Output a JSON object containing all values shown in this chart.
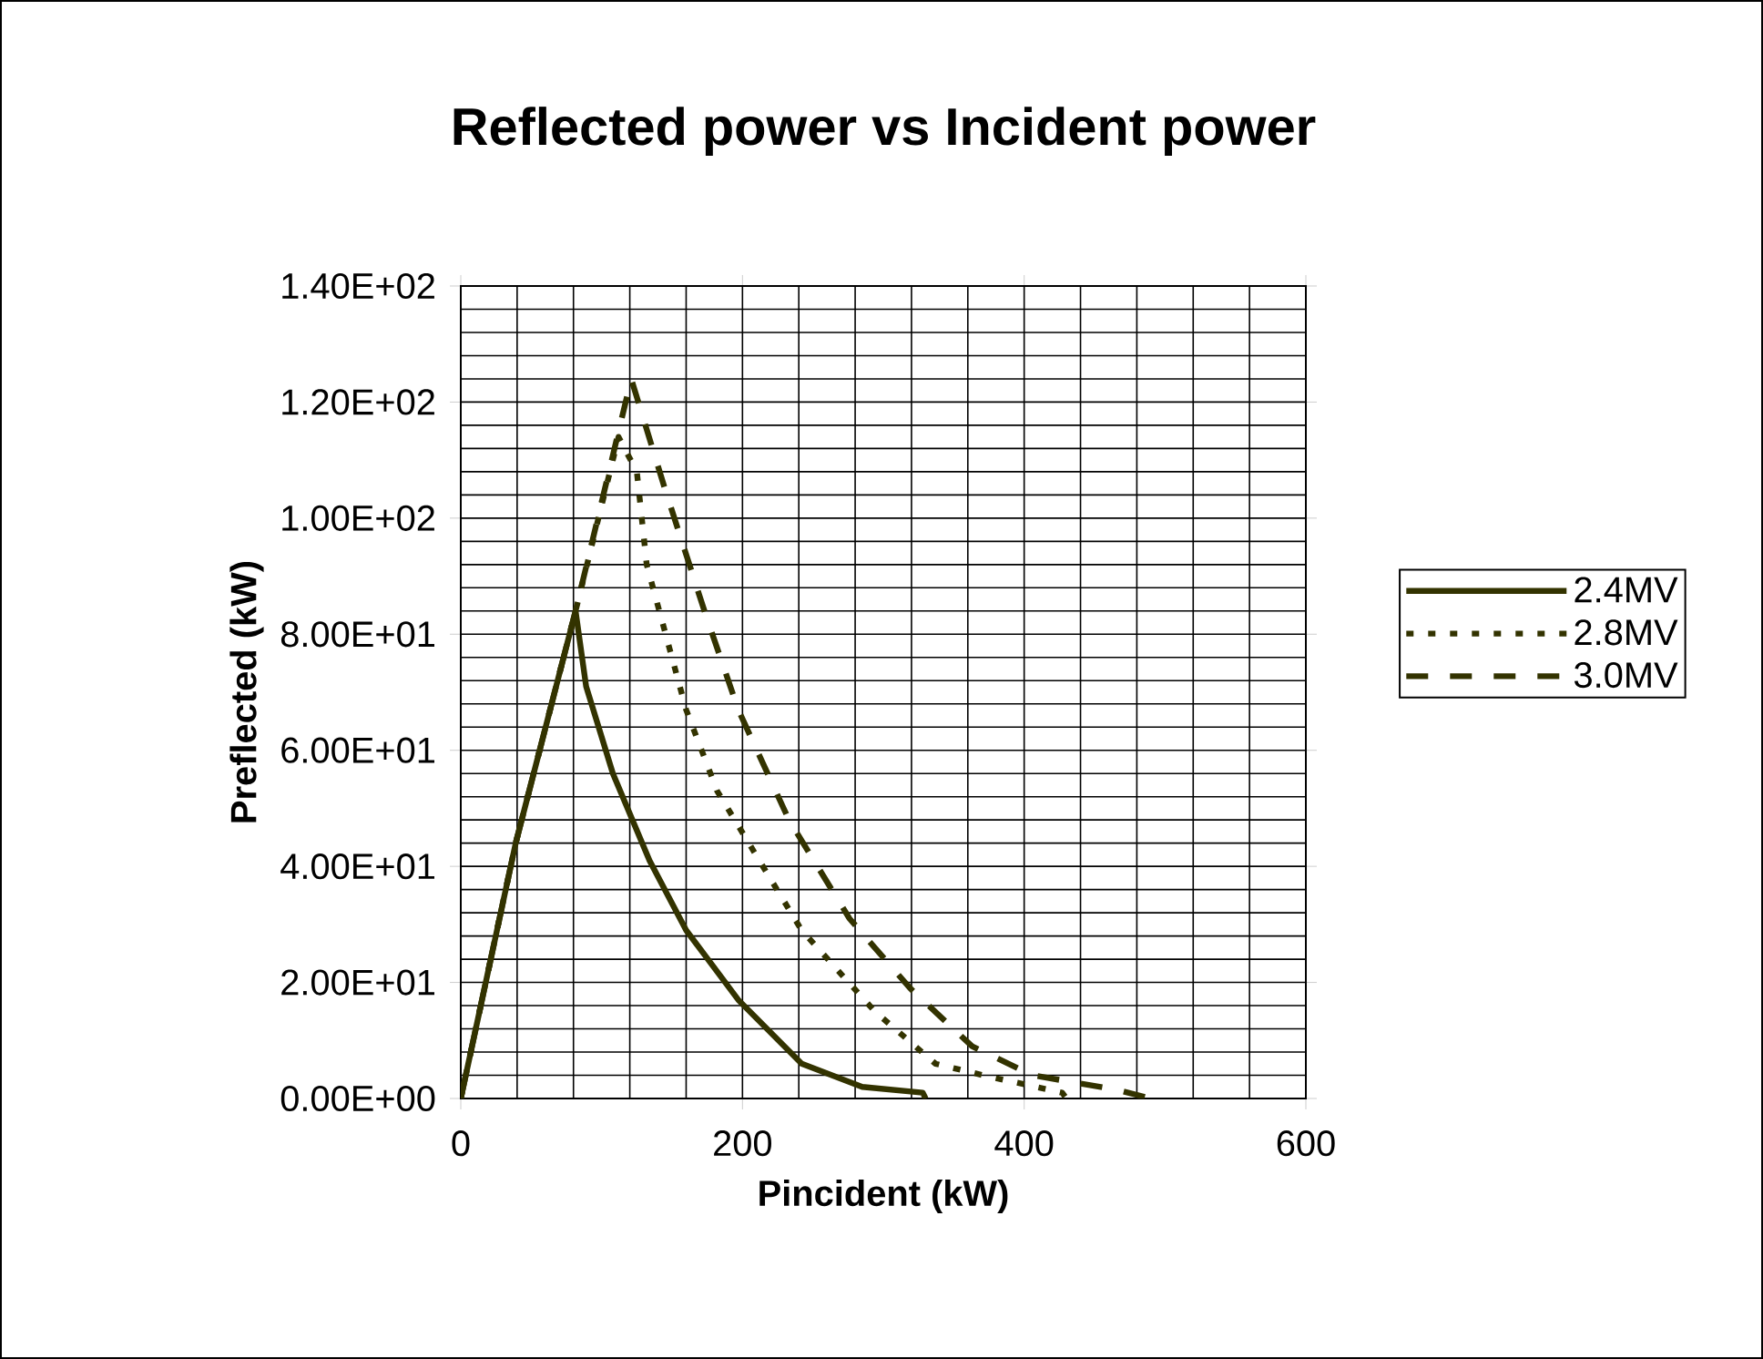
{
  "chart_data": {
    "type": "line",
    "title": "Reflected power vs Incident power",
    "xlabel": "Pincident (kW)",
    "ylabel": "Preflected (kW)",
    "xlim": [
      0,
      600
    ],
    "xticks": [
      0,
      200,
      400,
      600
    ],
    "ylim": [
      0,
      140
    ],
    "yticks": [
      {
        "value": 0,
        "label": "0.00E+00"
      },
      {
        "value": 20,
        "label": "2.00E+01"
      },
      {
        "value": 40,
        "label": "4.00E+01"
      },
      {
        "value": 60,
        "label": "6.00E+01"
      },
      {
        "value": 80,
        "label": "8.00E+01"
      },
      {
        "value": 100,
        "label": "1.00E+02"
      },
      {
        "value": 120,
        "label": "1.20E+02"
      },
      {
        "value": 140,
        "label": "1.40E+02"
      }
    ],
    "grid": true,
    "legend": "right",
    "marker": "none",
    "series": [
      {
        "name": "2.4MV",
        "color": "#333300",
        "line_style": "solid",
        "x": [
          0,
          39,
          81.5,
          89,
          108,
          134,
          160,
          197,
          242,
          285,
          328,
          330
        ],
        "values": [
          0,
          44,
          84,
          71,
          56,
          41,
          29,
          17,
          6,
          2,
          1,
          0
        ]
      },
      {
        "name": "2.8MV",
        "color": "#333300",
        "line_style": "dotted",
        "x": [
          0,
          39,
          81.5,
          112,
          125,
          132,
          160,
          182,
          212,
          242,
          294,
          337,
          371,
          427,
          430
        ],
        "values": [
          0,
          44,
          84,
          114,
          108,
          92,
          67,
          53,
          41,
          29,
          15,
          6,
          4,
          1,
          0
        ]
      },
      {
        "name": "3.0MV",
        "color": "#333300",
        "line_style": "dashed",
        "x": [
          0,
          39,
          81.5,
          121,
          145,
          173,
          197,
          233,
          276,
          319,
          363,
          406,
          466,
          490
        ],
        "values": [
          0,
          44,
          84,
          124,
          105,
          84,
          67,
          48,
          31,
          19,
          9,
          4,
          1.5,
          0
        ]
      }
    ]
  }
}
